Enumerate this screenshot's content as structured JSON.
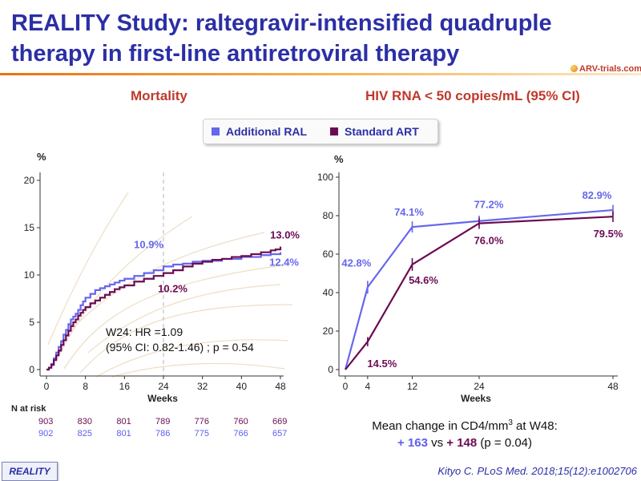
{
  "slide": {
    "title": "REALITY Study: raltegravir-intensified quadruple therapy in first-line antiretroviral therapy",
    "logo_text": "ARV-trials.com",
    "footer_badge": "REALITY",
    "citation": "Kityo C. PLoS Med. 2018;15(12):e1002706"
  },
  "legend": {
    "ral": "Additional  RAL",
    "std": "Standard  ART"
  },
  "colors": {
    "ral": "#6666ee",
    "std": "#6b0b52",
    "title": "#2b2fa5",
    "heading": "#c0392b"
  },
  "annotation": {
    "line1": "W24: HR =1.09",
    "line2": "(95% CI: 0.82-1.46) ;  p = 0.54"
  },
  "cd4": {
    "line1_pre": "Mean change in CD4/mm",
    "line1_sup": "3",
    "line1_post": "  at W48:",
    "ral": "+ 163",
    "vs": " vs ",
    "std": "+ 148",
    "p": " (p = 0.04)"
  },
  "chart_data": [
    {
      "type": "line",
      "subtype": "kaplan-meier",
      "title": "Mortality",
      "xlabel": "Weeks",
      "ylabel": "%",
      "xlim": [
        0,
        48
      ],
      "ylim": [
        0,
        20
      ],
      "xticks": [
        0,
        8,
        16,
        24,
        32,
        40,
        48
      ],
      "yticks": [
        0,
        5,
        10,
        15,
        20
      ],
      "reference_line_x": 24,
      "series": [
        {
          "name": "Additional  RAL",
          "points": [
            [
              0,
              0
            ],
            [
              0.5,
              0.2
            ],
            [
              1,
              0.6
            ],
            [
              1.5,
              1.2
            ],
            [
              2,
              1.8
            ],
            [
              2.5,
              2.4
            ],
            [
              3,
              3.0
            ],
            [
              3.5,
              3.7
            ],
            [
              4,
              4.2
            ],
            [
              4.5,
              4.8
            ],
            [
              5,
              5.3
            ],
            [
              5.5,
              5.6
            ],
            [
              6,
              5.9
            ],
            [
              6.5,
              6.3
            ],
            [
              7,
              6.8
            ],
            [
              7.5,
              7.2
            ],
            [
              8,
              7.6
            ],
            [
              9,
              8.0
            ],
            [
              10,
              8.4
            ],
            [
              11,
              8.6
            ],
            [
              12,
              8.8
            ],
            [
              13,
              9.0
            ],
            [
              14,
              9.2
            ],
            [
              15,
              9.4
            ],
            [
              16,
              9.6
            ],
            [
              18,
              9.9
            ],
            [
              20,
              10.2
            ],
            [
              22,
              10.5
            ],
            [
              24,
              10.9
            ],
            [
              26,
              11.1
            ],
            [
              28,
              11.2
            ],
            [
              30,
              11.4
            ],
            [
              32,
              11.5
            ],
            [
              36,
              11.7
            ],
            [
              40,
              11.9
            ],
            [
              44,
              12.1
            ],
            [
              46,
              12.2
            ],
            [
              48,
              12.4
            ]
          ],
          "labels": [
            {
              "x": 24,
              "y": 10.9,
              "text": "10.9%"
            },
            {
              "x": 48,
              "y": 12.4,
              "text": "12.4%"
            }
          ]
        },
        {
          "name": "Standard  ART",
          "points": [
            [
              0,
              0
            ],
            [
              0.5,
              0.2
            ],
            [
              1,
              0.5
            ],
            [
              1.5,
              1.0
            ],
            [
              2,
              1.5
            ],
            [
              2.5,
              2.0
            ],
            [
              3,
              2.6
            ],
            [
              3.5,
              3.1
            ],
            [
              4,
              3.6
            ],
            [
              4.5,
              4.1
            ],
            [
              5,
              4.6
            ],
            [
              5.5,
              5.0
            ],
            [
              6,
              5.3
            ],
            [
              6.5,
              5.7
            ],
            [
              7,
              6.0
            ],
            [
              7.5,
              6.3
            ],
            [
              8,
              6.6
            ],
            [
              9,
              7.0
            ],
            [
              10,
              7.3
            ],
            [
              11,
              7.6
            ],
            [
              12,
              7.9
            ],
            [
              13,
              8.2
            ],
            [
              14,
              8.5
            ],
            [
              15,
              8.7
            ],
            [
              16,
              8.9
            ],
            [
              18,
              9.3
            ],
            [
              20,
              9.6
            ],
            [
              22,
              9.9
            ],
            [
              24,
              10.2
            ],
            [
              26,
              10.5
            ],
            [
              28,
              10.9
            ],
            [
              30,
              11.2
            ],
            [
              32,
              11.4
            ],
            [
              34,
              11.6
            ],
            [
              36,
              11.7
            ],
            [
              38,
              11.9
            ],
            [
              40,
              12.0
            ],
            [
              42,
              12.2
            ],
            [
              44,
              12.4
            ],
            [
              46,
              12.6
            ],
            [
              47,
              12.7
            ],
            [
              48,
              13.0
            ]
          ],
          "labels": [
            {
              "x": 24,
              "y": 10.2,
              "text": "10.2%"
            },
            {
              "x": 48,
              "y": 13.0,
              "text": "13.0%"
            }
          ]
        }
      ],
      "n_at_risk": {
        "label": "N at risk",
        "weeks": [
          0,
          8,
          16,
          24,
          32,
          40,
          48
        ],
        "standard": [
          "903",
          "830",
          "801",
          "789",
          "776",
          "760",
          "669"
        ],
        "ral": [
          "902",
          "825",
          "801",
          "786",
          "775",
          "766",
          "657"
        ]
      }
    },
    {
      "type": "line",
      "title": "HIV RNA < 50 copies/mL (95% CI)",
      "xlabel": "Weeks",
      "ylabel": "%",
      "xlim": [
        0,
        48
      ],
      "ylim": [
        0,
        100
      ],
      "xticks": [
        0,
        4,
        12,
        24,
        48
      ],
      "yticks": [
        0,
        20,
        40,
        60,
        80,
        100
      ],
      "series": [
        {
          "name": "Additional  RAL",
          "x": [
            0,
            4,
            12,
            24,
            48
          ],
          "y": [
            0,
            42.8,
            74.1,
            77.2,
            82.9
          ],
          "ci_halfwidth": [
            0,
            3.3,
            2.9,
            2.8,
            2.7
          ],
          "labels": [
            "",
            "42.8%",
            "74.1%",
            "77.2%",
            "82.9%"
          ]
        },
        {
          "name": "Standard  ART",
          "x": [
            0,
            4,
            12,
            24,
            48
          ],
          "y": [
            0,
            14.5,
            54.6,
            76.0,
            79.5
          ],
          "ci_halfwidth": [
            0,
            2.4,
            3.3,
            2.9,
            2.8
          ],
          "labels": [
            "",
            "14.5%",
            "54.6%",
            "76.0%",
            "79.5%"
          ]
        }
      ]
    }
  ]
}
